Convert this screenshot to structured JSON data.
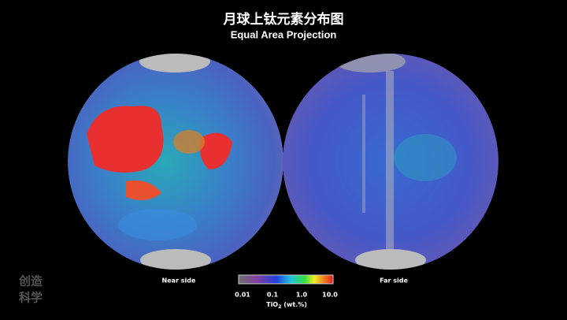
{
  "header": {
    "title": "月球上钛元素分布图",
    "subtitle": "Equal Area Projection"
  },
  "maps": [
    {
      "label": "Near side"
    },
    {
      "label": "Far side"
    }
  ],
  "legend": {
    "ticks": [
      "0.01",
      "0.1",
      "1.0",
      "10.0"
    ],
    "unit_main": "TiO",
    "unit_sub": "2",
    "unit_rest": "(wt.%)"
  },
  "watermark": {
    "line1": "创造",
    "line2": "科学"
  }
}
